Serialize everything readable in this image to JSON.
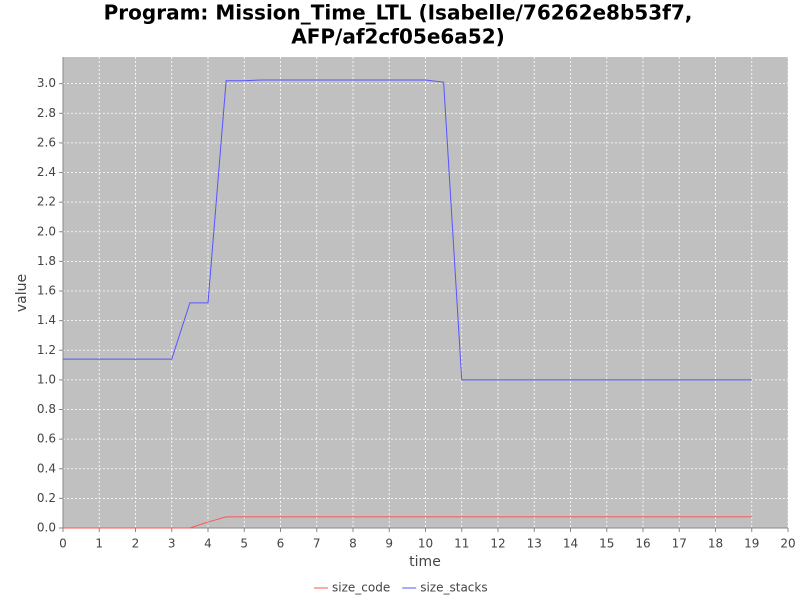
{
  "chart_data": {
    "type": "line",
    "title": [
      "Program: Mission_Time_LTL (Isabelle/76262e8b53f7,",
      "AFP/af2cf05e6a52)"
    ],
    "x_label": "time",
    "y_label": "value",
    "x": [
      0,
      3,
      3.5,
      4,
      4.5,
      5,
      5.5,
      10,
      10.5,
      11,
      19
    ],
    "series": [
      {
        "name": "size_code",
        "color": "#ff5555",
        "values": [
          0,
          0,
          0,
          0.04,
          0.075,
          0.075,
          0.075,
          0.075,
          0.075,
          0.075,
          0.075
        ]
      },
      {
        "name": "size_stacks",
        "color": "#5555ff",
        "values": [
          1.14,
          1.14,
          1.52,
          1.52,
          3.02,
          3.02,
          3.025,
          3.025,
          3.01,
          1.0,
          1.0
        ]
      }
    ],
    "xlim": [
      0,
      20
    ],
    "xticks": [
      0,
      1,
      2,
      3,
      4,
      5,
      6,
      7,
      8,
      9,
      10,
      11,
      12,
      13,
      14,
      15,
      16,
      17,
      18,
      19,
      20
    ],
    "ylim": [
      0,
      3.18
    ],
    "yticks": [
      {
        "value": 0,
        "label": "0.0"
      },
      {
        "value": 0.2,
        "label": "0.2"
      },
      {
        "value": 0.4,
        "label": "0.4"
      },
      {
        "value": 0.6,
        "label": "0.6"
      },
      {
        "value": 0.8,
        "label": "0.8"
      },
      {
        "value": 1,
        "label": "1.0"
      },
      {
        "value": 1.2,
        "label": "1.2"
      },
      {
        "value": 1.4,
        "label": "1.4"
      },
      {
        "value": 1.6,
        "label": "1.6"
      },
      {
        "value": 1.8,
        "label": "1.8"
      },
      {
        "value": 2,
        "label": "2.0"
      },
      {
        "value": 2.2,
        "label": "2.2"
      },
      {
        "value": 2.4,
        "label": "2.4"
      },
      {
        "value": 2.6,
        "label": "2.6"
      },
      {
        "value": 2.8,
        "label": "2.8"
      },
      {
        "value": 3,
        "label": "3.0"
      }
    ],
    "grid": true,
    "legend": "bottom",
    "plot_background": "#c0c0c0"
  }
}
